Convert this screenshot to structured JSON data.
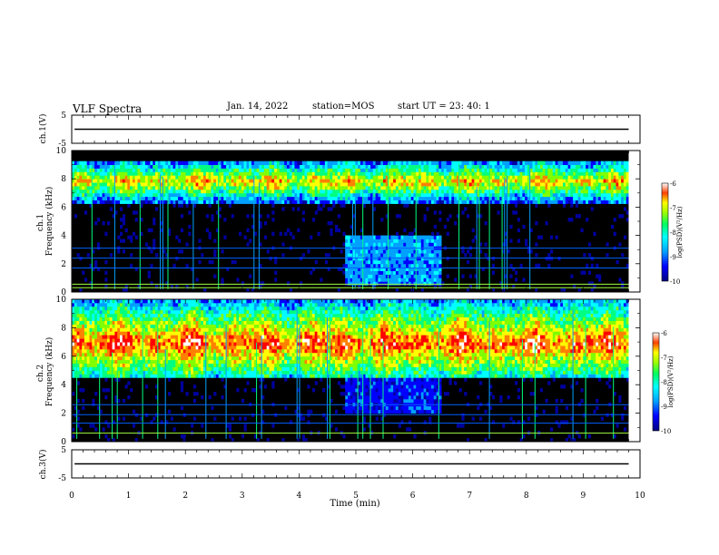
{
  "header": {
    "title": "VLF Spectra",
    "date": "Jan. 14, 2022",
    "station": "station=MOS",
    "start": "start UT =  23: 40: 1"
  },
  "colors": {
    "background": "#000000",
    "colormap": [
      "#000000",
      "#0000a0",
      "#0000ff",
      "#00a0ff",
      "#00ffff",
      "#00ff80",
      "#80ff00",
      "#ffff00",
      "#ff8000",
      "#ff0000",
      "#ffffff"
    ],
    "line": "#000000"
  },
  "chart_data": [
    {
      "type": "line",
      "panel": "ch1-waveform",
      "ylabel": "ch.1(V)",
      "ylim": [
        -5,
        5
      ],
      "yticks": [
        "5",
        "-5"
      ],
      "xlim": [
        0,
        10
      ],
      "series": [
        {
          "x": [
            0.05,
            9.8
          ],
          "values": [
            0,
            0
          ]
        }
      ]
    },
    {
      "type": "heatmap",
      "panel": "ch1-spectrogram",
      "ylabel": "ch.1 Frequency (kHz)",
      "ylim": [
        0,
        10
      ],
      "yticks": [
        "0",
        "2",
        "4",
        "6",
        "8",
        "10"
      ],
      "xlim": [
        0,
        10
      ],
      "colorbar": {
        "label": "log(PSD)(V²/Hz)",
        "range": [
          -10,
          -6
        ],
        "ticks": [
          "-6",
          "-7",
          "-8",
          "-9",
          "-10"
        ]
      },
      "bands": [
        {
          "name": "chorus",
          "fmin": 6.2,
          "fmax": 9.2,
          "level": -7.5
        },
        {
          "name": "enhanced block",
          "tmin": 4.8,
          "tmax": 6.5,
          "fmin": 0.5,
          "fmax": 3.8,
          "level": -8.8
        }
      ],
      "lines_khz": [
        0.3,
        0.55,
        1.7,
        2.4,
        3.1
      ]
    },
    {
      "type": "heatmap",
      "panel": "ch2-spectrogram",
      "ylabel": "ch.2 Frequency (kHz)",
      "ylim": [
        0,
        10
      ],
      "yticks": [
        "0",
        "2",
        "4",
        "6",
        "8",
        "10"
      ],
      "xlim": [
        0,
        10
      ],
      "colorbar": {
        "label": "log(PSD)(V²/Hz)",
        "range": [
          -10,
          -6
        ],
        "ticks": [
          "-6",
          "-7",
          "-8",
          "-9",
          "-10"
        ]
      },
      "bands": [
        {
          "name": "chorus",
          "fmin": 4.3,
          "fmax": 9.8,
          "peak": 6.8,
          "level": -7.0
        },
        {
          "name": "enhanced block",
          "tmin": 4.8,
          "tmax": 6.5,
          "fmin": 2.0,
          "fmax": 4.5,
          "level": -9.2
        }
      ],
      "lines_khz": [
        0.6,
        1.3,
        1.9,
        2.6
      ]
    },
    {
      "type": "line",
      "panel": "ch3-waveform",
      "ylabel": "ch.3(V)",
      "ylim": [
        -5,
        5
      ],
      "yticks": [
        "5",
        "-5"
      ],
      "xlim": [
        0,
        10
      ],
      "series": [
        {
          "x": [
            0.05,
            9.8
          ],
          "values": [
            0,
            0
          ]
        }
      ]
    }
  ],
  "xaxis": {
    "label": "Time (min)",
    "ticks": [
      "0",
      "1",
      "2",
      "3",
      "4",
      "5",
      "6",
      "7",
      "8",
      "9",
      "10"
    ]
  }
}
